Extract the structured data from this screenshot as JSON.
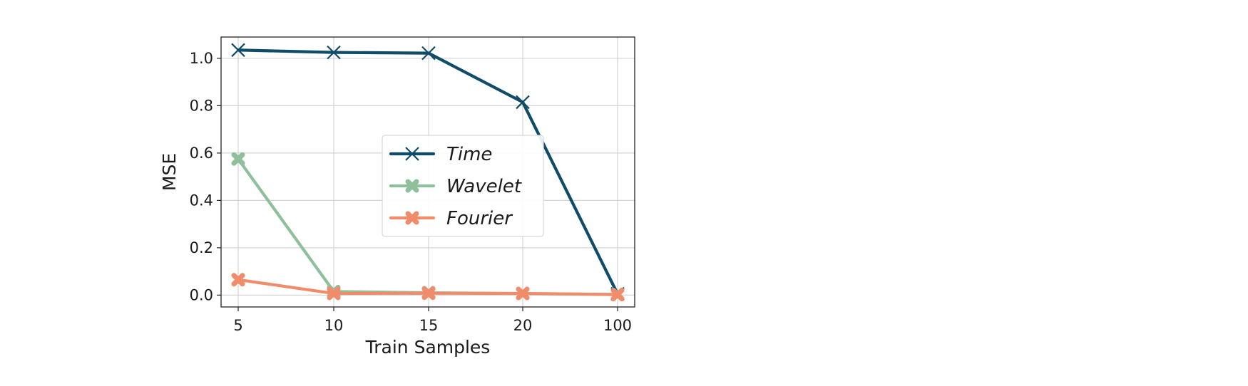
{
  "chart_data": {
    "type": "line",
    "categories": [
      "5",
      "10",
      "15",
      "20",
      "100"
    ],
    "xlabel": "Train Samples",
    "ylabel": "MSE",
    "ylim": [
      -0.05,
      1.09
    ],
    "yticks": [
      0.0,
      0.2,
      0.4,
      0.6,
      0.8,
      1.0
    ],
    "ytick_labels": [
      "0.0",
      "0.2",
      "0.4",
      "0.6",
      "0.8",
      "1.0"
    ],
    "grid": true,
    "legend_position": "center",
    "series": [
      {
        "name": "Time",
        "color": "#0f4c68",
        "marker": "x",
        "values": [
          1.035,
          1.025,
          1.022,
          0.815,
          0.005
        ]
      },
      {
        "name": "Wavelet",
        "color": "#8fbf9b",
        "marker": "X",
        "values": [
          0.575,
          0.015,
          0.01,
          0.007,
          0.003
        ]
      },
      {
        "name": "Fourier",
        "color": "#f08c6a",
        "marker": "X",
        "values": [
          0.065,
          0.007,
          0.008,
          0.007,
          0.002
        ]
      }
    ]
  }
}
